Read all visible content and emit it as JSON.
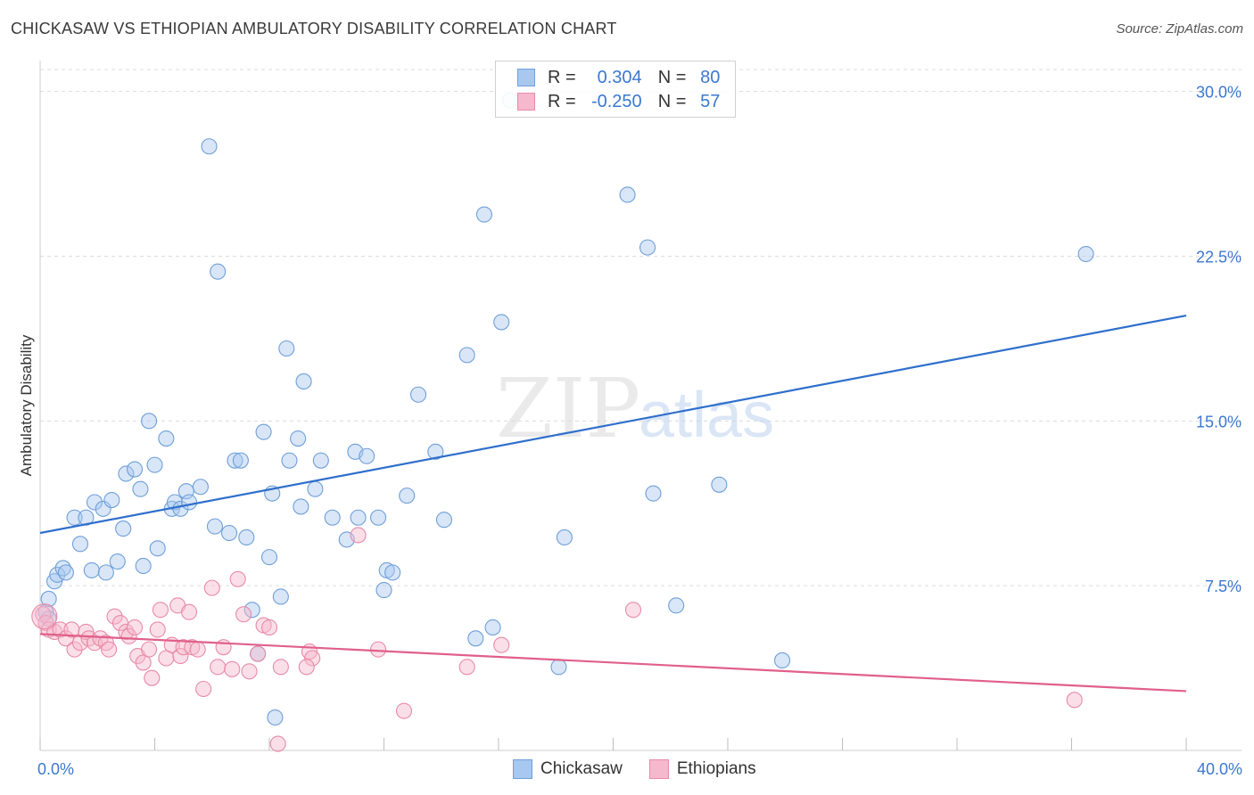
{
  "header": {
    "title": "CHICKASAW VS ETHIOPIAN AMBULATORY DISABILITY CORRELATION CHART",
    "source": "Source: ZipAtlas.com"
  },
  "legend_top": {
    "rows": [
      {
        "r_label": "R =",
        "r_value": "0.304",
        "n_label": "N =",
        "n_value": "80"
      },
      {
        "r_label": "R =",
        "r_value": "-0.250",
        "n_label": "N =",
        "n_value": "57"
      }
    ]
  },
  "legend_bottom": {
    "series_a": "Chickasaw",
    "series_b": "Ethiopians"
  },
  "colors": {
    "chickasaw_fill": "#a8c8f0",
    "chickasaw_stroke": "#6f9fd8",
    "chickasaw_line": "#2f6fcc",
    "ethiopian_fill": "#f6b8cc",
    "ethiopian_stroke": "#e88aa8",
    "ethiopian_line": "#e0608a",
    "axis_label": "#3b78d0"
  },
  "watermark": {
    "part1": "ZIP",
    "part2": "atlas"
  },
  "chart_data": {
    "type": "scatter",
    "title": "CHICKASAW VS ETHIOPIAN AMBULATORY DISABILITY CORRELATION CHART",
    "xlabel": "",
    "ylabel": "Ambulatory Disability",
    "xlim": [
      0,
      40
    ],
    "ylim": [
      0,
      31
    ],
    "x_tick_labels": [
      "0.0%",
      "40.0%"
    ],
    "y_ticks": [
      7.5,
      15.0,
      22.5,
      30.0
    ],
    "y_tick_labels": [
      "7.5%",
      "15.0%",
      "22.5%",
      "30.0%"
    ],
    "grid": true,
    "legend_position": "top-center",
    "series": [
      {
        "name": "Chickasaw",
        "r": 0.304,
        "n": 80,
        "trend": {
          "x": [
            0,
            40
          ],
          "y": [
            9.9,
            19.8
          ]
        },
        "points": [
          [
            0.2,
            6.3
          ],
          [
            0.3,
            6.0
          ],
          [
            0.3,
            6.9
          ],
          [
            0.5,
            7.7
          ],
          [
            0.6,
            8.0
          ],
          [
            0.8,
            8.3
          ],
          [
            0.9,
            8.1
          ],
          [
            1.2,
            10.6
          ],
          [
            1.4,
            9.4
          ],
          [
            1.6,
            10.6
          ],
          [
            1.8,
            8.2
          ],
          [
            1.9,
            11.3
          ],
          [
            2.2,
            11.0
          ],
          [
            2.3,
            8.1
          ],
          [
            2.5,
            11.4
          ],
          [
            2.7,
            8.6
          ],
          [
            2.9,
            10.1
          ],
          [
            3.0,
            12.6
          ],
          [
            3.3,
            12.8
          ],
          [
            3.5,
            11.9
          ],
          [
            3.6,
            8.4
          ],
          [
            3.8,
            15.0
          ],
          [
            4.0,
            13.0
          ],
          [
            4.1,
            9.2
          ],
          [
            4.4,
            14.2
          ],
          [
            4.6,
            11.0
          ],
          [
            4.7,
            11.3
          ],
          [
            4.9,
            11.0
          ],
          [
            5.1,
            11.8
          ],
          [
            5.2,
            11.3
          ],
          [
            5.6,
            12.0
          ],
          [
            5.9,
            27.5
          ],
          [
            6.1,
            10.2
          ],
          [
            6.2,
            21.8
          ],
          [
            6.6,
            9.9
          ],
          [
            6.8,
            13.2
          ],
          [
            7.0,
            13.2
          ],
          [
            7.2,
            9.7
          ],
          [
            7.4,
            6.4
          ],
          [
            7.6,
            4.4
          ],
          [
            7.8,
            14.5
          ],
          [
            8.0,
            8.8
          ],
          [
            8.1,
            11.7
          ],
          [
            8.2,
            1.5
          ],
          [
            8.4,
            7.0
          ],
          [
            8.6,
            18.3
          ],
          [
            8.7,
            13.2
          ],
          [
            9.0,
            14.2
          ],
          [
            9.1,
            11.1
          ],
          [
            9.2,
            16.8
          ],
          [
            9.6,
            11.9
          ],
          [
            9.8,
            13.2
          ],
          [
            10.2,
            10.6
          ],
          [
            10.7,
            9.6
          ],
          [
            11.0,
            13.6
          ],
          [
            11.1,
            10.6
          ],
          [
            11.4,
            13.4
          ],
          [
            11.8,
            10.6
          ],
          [
            12.0,
            7.3
          ],
          [
            12.1,
            8.2
          ],
          [
            12.3,
            8.1
          ],
          [
            12.8,
            11.6
          ],
          [
            13.2,
            16.2
          ],
          [
            13.8,
            13.6
          ],
          [
            14.1,
            10.5
          ],
          [
            14.9,
            18.0
          ],
          [
            15.2,
            5.1
          ],
          [
            15.5,
            24.4
          ],
          [
            15.8,
            5.6
          ],
          [
            16.1,
            19.5
          ],
          [
            16.4,
            29.6
          ],
          [
            18.1,
            3.8
          ],
          [
            18.3,
            9.7
          ],
          [
            20.5,
            25.3
          ],
          [
            21.2,
            22.9
          ],
          [
            21.4,
            11.7
          ],
          [
            22.2,
            6.6
          ],
          [
            23.7,
            12.1
          ],
          [
            25.9,
            4.1
          ],
          [
            36.5,
            22.6
          ]
        ]
      },
      {
        "name": "Ethiopians",
        "r": -0.25,
        "n": 57,
        "trend": {
          "x": [
            0,
            40
          ],
          "y": [
            5.3,
            2.7
          ]
        },
        "points": [
          [
            0.1,
            6.2
          ],
          [
            0.2,
            5.8
          ],
          [
            0.3,
            5.5
          ],
          [
            0.5,
            5.4
          ],
          [
            0.7,
            5.5
          ],
          [
            0.9,
            5.1
          ],
          [
            1.1,
            5.5
          ],
          [
            1.2,
            4.6
          ],
          [
            1.4,
            4.9
          ],
          [
            1.6,
            5.4
          ],
          [
            1.7,
            5.1
          ],
          [
            1.9,
            4.9
          ],
          [
            2.1,
            5.1
          ],
          [
            2.3,
            4.9
          ],
          [
            2.4,
            4.6
          ],
          [
            2.6,
            6.1
          ],
          [
            2.8,
            5.8
          ],
          [
            3.0,
            5.4
          ],
          [
            3.1,
            5.2
          ],
          [
            3.3,
            5.6
          ],
          [
            3.4,
            4.3
          ],
          [
            3.6,
            4.0
          ],
          [
            3.8,
            4.6
          ],
          [
            3.9,
            3.3
          ],
          [
            4.1,
            5.5
          ],
          [
            4.2,
            6.4
          ],
          [
            4.4,
            4.2
          ],
          [
            4.6,
            4.8
          ],
          [
            4.8,
            6.6
          ],
          [
            4.9,
            4.3
          ],
          [
            5.0,
            4.7
          ],
          [
            5.2,
            6.3
          ],
          [
            5.3,
            4.7
          ],
          [
            5.5,
            4.6
          ],
          [
            5.7,
            2.8
          ],
          [
            6.0,
            7.4
          ],
          [
            6.2,
            3.8
          ],
          [
            6.4,
            4.7
          ],
          [
            6.7,
            3.7
          ],
          [
            6.9,
            7.8
          ],
          [
            7.1,
            6.2
          ],
          [
            7.3,
            3.6
          ],
          [
            7.6,
            4.4
          ],
          [
            7.8,
            5.7
          ],
          [
            8.0,
            5.6
          ],
          [
            8.4,
            3.8
          ],
          [
            8.3,
            0.3
          ],
          [
            9.4,
            4.5
          ],
          [
            9.5,
            4.2
          ],
          [
            9.3,
            3.8
          ],
          [
            11.1,
            9.8
          ],
          [
            11.8,
            4.6
          ],
          [
            12.7,
            1.8
          ],
          [
            14.9,
            3.8
          ],
          [
            16.1,
            4.8
          ],
          [
            20.7,
            6.4
          ],
          [
            36.1,
            2.3
          ]
        ]
      }
    ]
  }
}
